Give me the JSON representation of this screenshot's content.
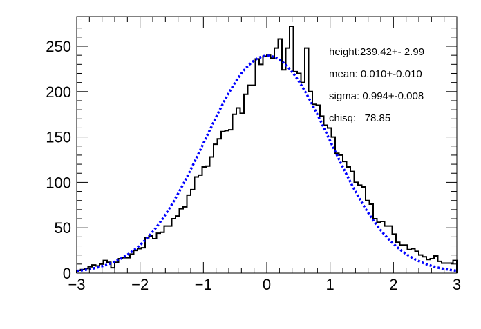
{
  "chart_data": {
    "type": "bar",
    "subtype": "histogram-with-gaussian-fit",
    "title": "",
    "xlabel": "",
    "ylabel": "",
    "xlim": [
      -3,
      3
    ],
    "ylim": [
      0,
      280
    ],
    "x_ticks": [
      "-3",
      "-2",
      "-1",
      "0",
      "1",
      "2",
      "3"
    ],
    "y_ticks": [
      "0",
      "50",
      "100",
      "150",
      "200",
      "250"
    ],
    "bin_width": 0.06,
    "bin_low_edges_start": -3.0,
    "n_bins": 100,
    "series": [
      {
        "name": "histogram",
        "color": "#000000",
        "values": [
          3,
          4,
          5,
          7,
          9,
          8,
          10,
          14,
          12,
          6,
          12,
          16,
          17,
          17,
          21,
          25,
          27,
          28,
          39,
          41,
          38,
          44,
          45,
          52,
          52,
          60,
          63,
          71,
          73,
          86,
          92,
          106,
          108,
          117,
          118,
          128,
          142,
          148,
          156,
          157,
          158,
          175,
          182,
          176,
          197,
          207,
          207,
          236,
          230,
          239,
          240,
          237,
          248,
          258,
          224,
          248,
          272,
          222,
          220,
          210,
          248,
          200,
          186,
          185,
          173,
          163,
          160,
          150,
          132,
          130,
          123,
          117,
          112,
          100,
          97,
          95,
          80,
          76,
          60,
          56,
          57,
          52,
          52,
          43,
          34,
          31,
          31,
          26,
          27,
          24,
          20,
          18,
          15,
          16,
          19,
          13,
          11,
          11,
          11,
          14
        ]
      },
      {
        "name": "gaussian fit",
        "color": "#0000ff",
        "style": "dotted",
        "params": {
          "height": 239.42,
          "mean": 0.01,
          "sigma": 0.994
        }
      }
    ],
    "annotations": [
      "height:239.42+- 2.99",
      "mean: 0.010+-0.010",
      "sigma: 0.994+-0.008",
      "chisq:   78.85"
    ],
    "grid": false,
    "legend": "none"
  },
  "fit_box": {
    "height_label": "height:239.42+- 2.99",
    "mean_label": "mean: 0.010+-0.010",
    "sigma_label": "sigma: 0.994+-0.008",
    "chisq_label": "chisq:   78.85"
  }
}
